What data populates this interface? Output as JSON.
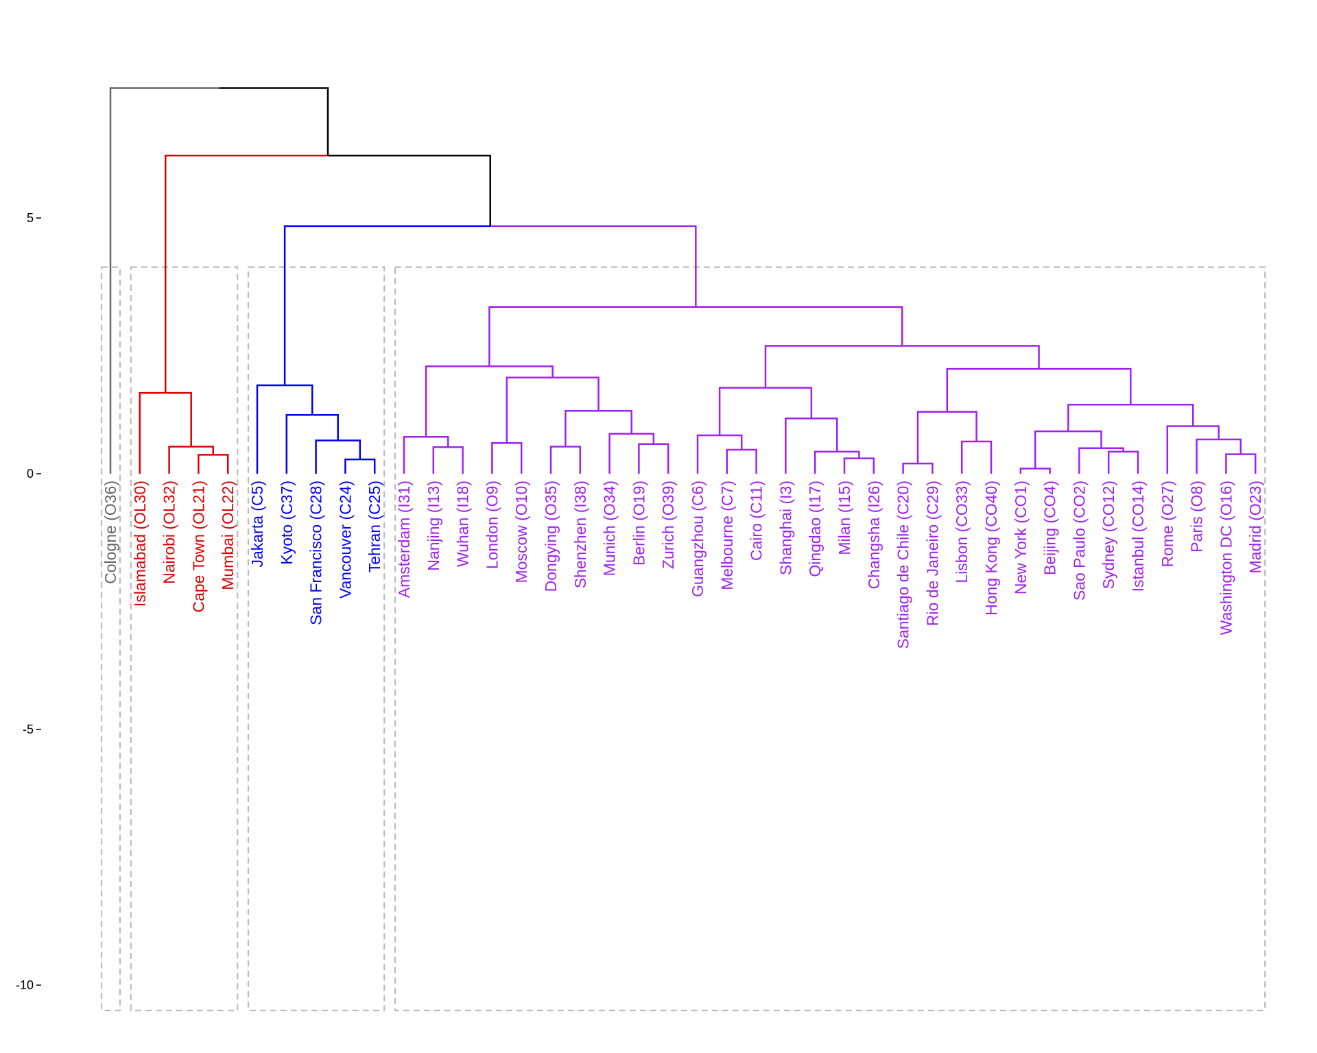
{
  "chart_data": {
    "type": "dendrogram",
    "title": "",
    "xlabel": "",
    "ylabel": "",
    "ylim": [
      -10.5,
      7.8
    ],
    "y_ticks": [
      "5",
      "0",
      "-5",
      "-10"
    ],
    "y_tick_values": [
      5,
      0,
      -5,
      -10
    ],
    "grid": false,
    "cut_height": 4.04,
    "leaves": [
      "Cologne (O36)",
      "Islamabad (OL30)",
      "Nairobi (OL32)",
      "Cape Town (OL21)",
      "Mumbai (OL22)",
      "Jakarta (C5)",
      "Kyoto (C37)",
      "San Francisco (C28)",
      "Vancouver (C24)",
      "Tehran (C25)",
      "Amsterdam (I31)",
      "Nanjing (I13)",
      "Wuhan (I18)",
      "London (O9)",
      "Moscow (O10)",
      "Dongying (O35)",
      "Shenzhen (I38)",
      "Munich (O34)",
      "Berlin (O19)",
      "Zurich (O39)",
      "Guangzhou (C6)",
      "Melbourne (C7)",
      "Cairo (C11)",
      "Shanghai (I3)",
      "Qingdao (I17)",
      "Milan (I15)",
      "Changsha (I26)",
      "Santiago de Chile (C20)",
      "Rio de Janeiro (C29)",
      "Lisbon (CO33)",
      "Hong Kong (CO40)",
      "New York (CO1)",
      "Beijing (CO4)",
      "Sao Paulo (CO2)",
      "Sydney (CO12)",
      "Istanbul (CO14)",
      "Rome (O27)",
      "Paris (O8)",
      "Washington DC (O16)",
      "Madrid (O23)"
    ],
    "clusters": [
      {
        "color": "#666666",
        "first": 0,
        "last": 0
      },
      {
        "color": "#dd0000",
        "first": 1,
        "last": 4
      },
      {
        "color": "#0000ff",
        "first": 5,
        "last": 9
      },
      {
        "color": "#a020f0",
        "first": 10,
        "last": 39
      }
    ],
    "merge_tree": [
      7.54,
      0,
      [
        6.22,
        [
          1.58,
          1,
          [
            0.53,
            2,
            [
              0.37,
              3,
              4
            ]
          ]
        ],
        [
          4.84,
          [
            1.73,
            5,
            [
              1.15,
              6,
              [
                0.65,
                7,
                [
                  0.28,
                  8,
                  9
                ]
              ]
            ]
          ],
          [
            3.26,
            [
              2.1,
              [
                0.72,
                10,
                [
                  0.52,
                  11,
                  12
                ]
              ],
              [
                1.88,
                [
                  0.6,
                  13,
                  14
                ],
                [
                  1.23,
                  [
                    0.53,
                    15,
                    16
                  ],
                  [
                    0.78,
                    17,
                    [
                      0.58,
                      18,
                      19
                    ]
                  ]
                ]
              ]
            ],
            [
              2.5,
              [
                1.68,
                [
                  0.75,
                  20,
                  [
                    0.47,
                    21,
                    22
                  ]
                ],
                [
                  1.08,
                  23,
                  [
                    0.43,
                    24,
                    [
                      0.3,
                      25,
                      26
                    ]
                  ]
                ]
              ],
              [
                2.05,
                [
                  1.21,
                  [
                    0.2,
                    27,
                    28
                  ],
                  [
                    0.63,
                    29,
                    30
                  ]
                ],
                [
                  1.35,
                  [
                    0.83,
                    [
                      0.1,
                      31,
                      32
                    ],
                    [
                      0.5,
                      33,
                      [
                        0.43,
                        34,
                        35
                      ]
                    ]
                  ],
                  [
                    0.93,
                    36,
                    [
                      0.67,
                      37,
                      [
                        0.38,
                        38,
                        39
                      ]
                    ]
                  ]
                ]
              ]
            ]
          ]
        ]
      ]
    ],
    "colors": {
      "above_cut": "#000000",
      "cluster_box": "#bbbbbb",
      "axis": "#000000"
    }
  }
}
